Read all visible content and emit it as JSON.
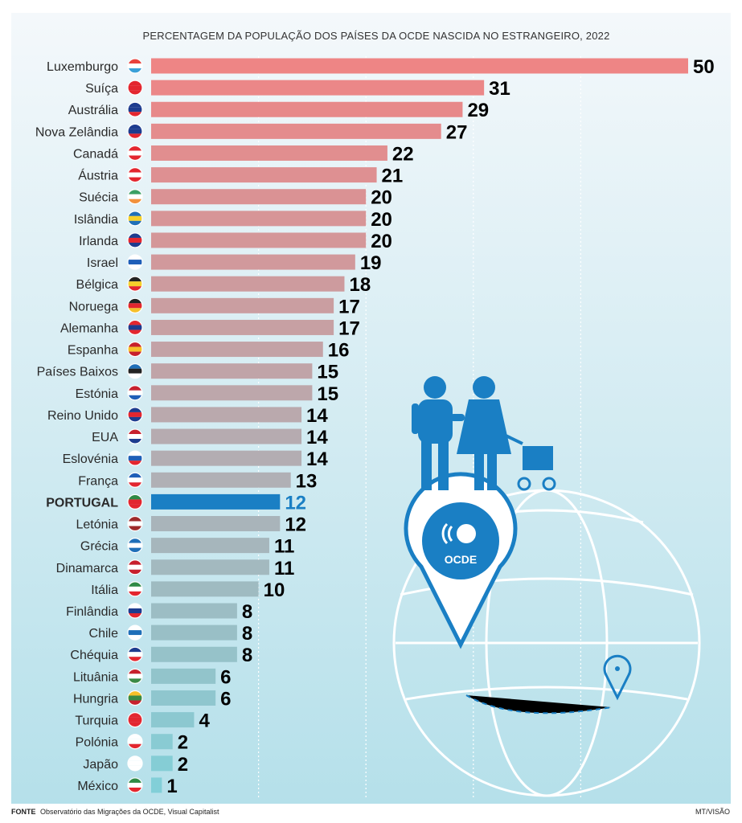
{
  "chart_data": {
    "type": "bar",
    "orientation": "horizontal",
    "title": "PERCENTAGEM DA POPULAÇÃO DOS PAÍSES DA OCDE NASCIDA NO ESTRANGEIRO, 2022",
    "categories": [
      "Luxemburgo",
      "Suíça",
      "Austrália",
      "Nova Zelândia",
      "Canadá",
      "Áustria",
      "Suécia",
      "Islândia",
      "Irlanda",
      "Israel",
      "Bélgica",
      "Noruega",
      "Alemanha",
      "Espanha",
      "Países Baixos",
      "Estónia",
      "Reino Unido",
      "EUA",
      "Eslovénia",
      "França",
      "PORTUGAL",
      "Letónia",
      "Grécia",
      "Dinamarca",
      "Itália",
      "Finlândia",
      "Chile",
      "Chéquia",
      "Lituânia",
      "Hungria",
      "Turquia",
      "Polónia",
      "Japão",
      "México"
    ],
    "values": [
      50,
      31,
      29,
      27,
      22,
      21,
      20,
      20,
      20,
      19,
      18,
      17,
      17,
      16,
      15,
      15,
      14,
      14,
      14,
      13,
      12,
      12,
      11,
      11,
      10,
      8,
      8,
      8,
      6,
      6,
      4,
      2,
      2,
      1
    ],
    "highlight": "PORTUGAL",
    "xlim": [
      0,
      50
    ],
    "grid": true,
    "colors": {
      "bar_top": "#ee8585",
      "bar_bottom": "#82cfd8",
      "highlight": "#1a7fc4",
      "background_top": "#f4f8fb",
      "background_bottom": "#b5e0ea"
    }
  },
  "flags": [
    "luxembourg-flag-icon",
    "switzerland-flag-icon",
    "australia-flag-icon",
    "new-zealand-flag-icon",
    "canada-flag-icon",
    "austria-flag-icon",
    "ireland-flag-icon",
    "sweden-flag-icon",
    "iceland-flag-icon",
    "israel-flag-icon",
    "belgium-flag-icon",
    "germany-flag-icon",
    "norway-flag-icon",
    "spain-flag-icon",
    "estonia-flag-icon",
    "netherlands-flag-icon",
    "uk-flag-icon",
    "usa-flag-icon",
    "slovenia-flag-icon",
    "france-flag-icon",
    "portugal-flag-icon",
    "latvia-flag-icon",
    "greece-flag-icon",
    "denmark-flag-icon",
    "italy-flag-icon",
    "czech-flag-icon",
    "finland-flag-icon",
    "chile-flag-icon",
    "hungary-flag-icon",
    "lithuania-flag-icon",
    "turkey-flag-icon",
    "poland-flag-icon",
    "japan-flag-icon",
    "mexico-flag-icon"
  ],
  "illustration": {
    "pin_label": "OCDE",
    "icons": [
      "family-icon",
      "stroller-icon",
      "globe-icon",
      "location-pin-icon"
    ]
  },
  "footer": {
    "source_label": "FONTE",
    "source_text": "Observatório das Migrações da OCDE, Visual Capitalist",
    "credit": "MT/VISÃO"
  }
}
